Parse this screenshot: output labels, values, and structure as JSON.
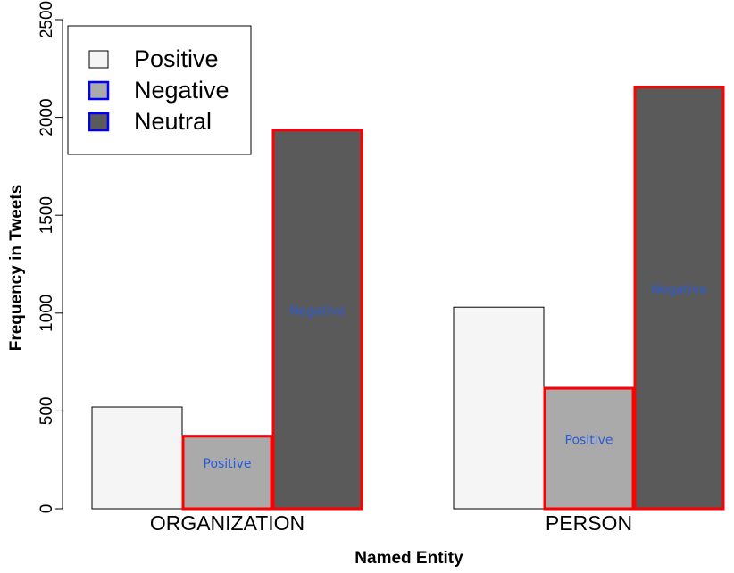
{
  "chart_data": {
    "type": "bar",
    "xlabel": "Named Entity",
    "ylabel": "Frequency in Tweets",
    "categories": [
      "ORGANIZATION",
      "PERSON"
    ],
    "ylim": [
      0,
      2500
    ],
    "yticks": [
      0,
      500,
      1000,
      1500,
      2000,
      2500
    ],
    "legend_position": "top-left",
    "series": [
      {
        "name": "Positive",
        "values": [
          520,
          1030
        ],
        "fill": "#f5f5f5",
        "stroke": "#000000"
      },
      {
        "name": "Negative",
        "values": [
          375,
          620
        ],
        "fill": "#aaaaaa",
        "stroke": "#0000ff"
      },
      {
        "name": "Neutral",
        "values": [
          1940,
          2160
        ],
        "fill": "#5a5a5a",
        "stroke": "#0000ff"
      }
    ],
    "annotations": [
      {
        "text": "Positive",
        "category": "ORGANIZATION",
        "series": "Negative",
        "value": 210
      },
      {
        "text": "Negative",
        "category": "ORGANIZATION",
        "series": "Neutral",
        "value": 990
      },
      {
        "text": "Positive",
        "category": "PERSON",
        "series": "Negative",
        "value": 330
      },
      {
        "text": "Negative",
        "category": "PERSON",
        "series": "Neutral",
        "value": 1100
      }
    ],
    "highlight_color": "#ff0000",
    "annotation_color": "#2a5bd7"
  }
}
